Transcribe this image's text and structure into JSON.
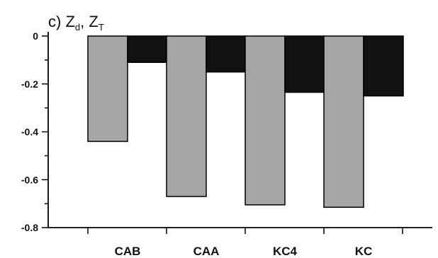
{
  "chart_data": {
    "type": "bar",
    "title": "c) Z_d, Z_T",
    "title_parts": {
      "prefix": "c) ",
      "var1": "Z",
      "sub1": "d",
      "sep": ", ",
      "var2": "Z",
      "sub2": "T"
    },
    "xlabel": "",
    "ylabel": "",
    "categories": [
      "CAB",
      "CAA",
      "KC4",
      "KC"
    ],
    "series": [
      {
        "values": [
          -0.44,
          -0.67,
          -0.705,
          -0.715
        ],
        "color": "#a6a6a6"
      },
      {
        "values": [
          -0.11,
          -0.15,
          -0.235,
          -0.25
        ],
        "color": "#111111"
      }
    ],
    "ylim": [
      -0.8,
      0
    ],
    "yticks": [
      0,
      -0.2,
      -0.4,
      -0.6,
      -0.8
    ],
    "ytick_labels": [
      "0",
      "-0.2",
      "-0.4",
      "-0.6",
      "-0.8"
    ],
    "grid": false,
    "legend": "none"
  }
}
